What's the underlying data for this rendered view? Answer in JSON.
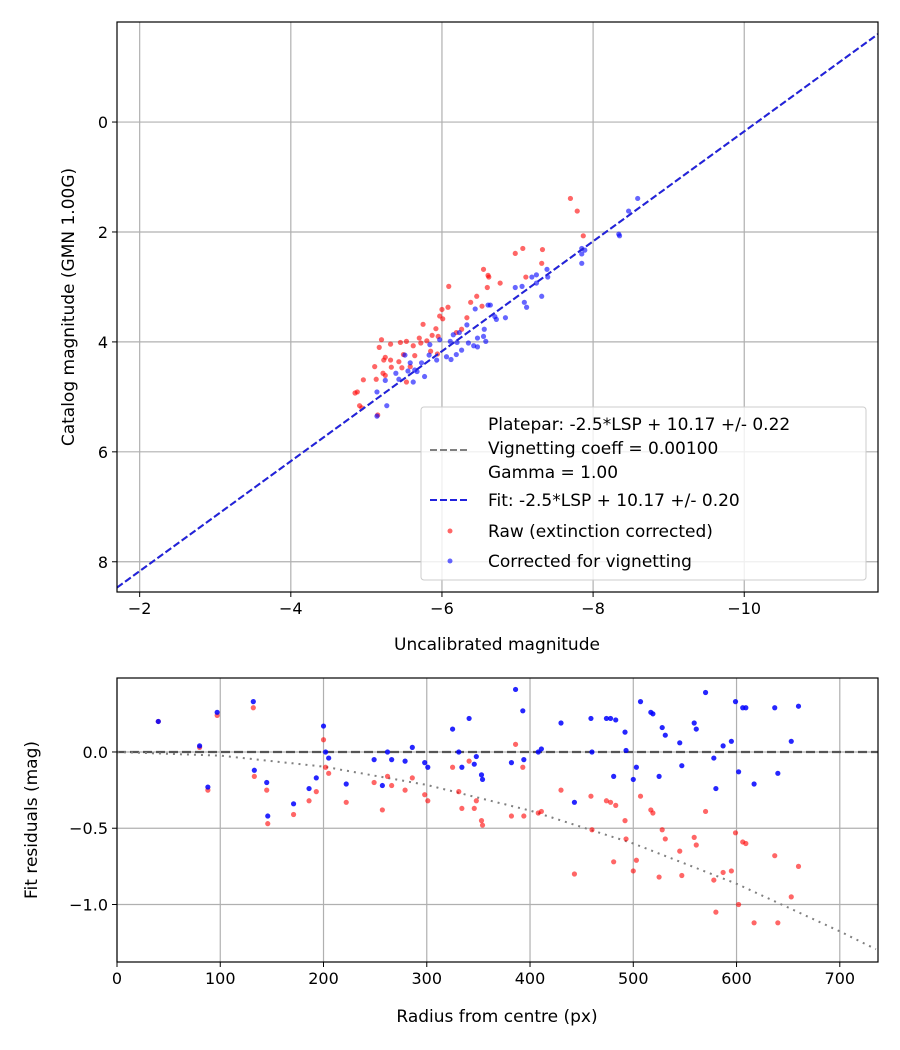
{
  "chart_data": [
    {
      "type": "scatter",
      "xlabel": "Uncalibrated magnitude",
      "ylabel": "Catalog magnitude (GMN 1.00G)",
      "xlim": [
        -1.7,
        -11.77
      ],
      "ylim": [
        8.55,
        -1.82
      ],
      "x_inverted": true,
      "y_inverted": true,
      "grid": true,
      "xticks": [
        -2,
        -4,
        -6,
        -8,
        -10
      ],
      "xtick_labels": [
        "−2",
        "−4",
        "−6",
        "−8",
        "−10"
      ],
      "yticks": [
        0,
        2,
        4,
        6,
        8
      ],
      "ytick_labels": [
        "0",
        "2",
        "4",
        "6",
        "8"
      ],
      "legend_position": "bottom-right",
      "lines": [
        {
          "name": "Platepar: -2.5*LSP + 10.17 +/- 0.22",
          "extra_lines": [
            "Vignetting coeff = 0.00100",
            "Gamma = 1.00"
          ],
          "slope": 1,
          "intercept": 10.17,
          "color": "#808080",
          "style": "dashed"
        },
        {
          "name": "Fit: -2.5*LSP + 10.17 +/- 0.20",
          "slope": 1,
          "intercept": 10.17,
          "color": "#2222dd",
          "style": "dashed"
        }
      ],
      "series": [
        {
          "name": "Raw (extinction corrected)",
          "color": "#ff0000",
          "points": [
            [
              -7.7,
              1.39
            ],
            [
              -7.79,
              1.62
            ],
            [
              -7.87,
              2.07
            ],
            [
              -6.97,
              2.39
            ],
            [
              -7.07,
              2.3
            ],
            [
              -7.33,
              2.32
            ],
            [
              -7.32,
              2.57
            ],
            [
              -6.55,
              2.68
            ],
            [
              -6.61,
              2.79
            ],
            [
              -6.62,
              2.82
            ],
            [
              -6.6,
              3.01
            ],
            [
              -6.77,
              2.93
            ],
            [
              -6.09,
              2.99
            ],
            [
              -6.46,
              3.17
            ],
            [
              -6.38,
              3.28
            ],
            [
              -6.08,
              3.37
            ],
            [
              -6.0,
              3.41
            ],
            [
              -5.97,
              3.53
            ],
            [
              -6.01,
              3.58
            ],
            [
              -6.33,
              3.56
            ],
            [
              -5.75,
              3.68
            ],
            [
              -5.92,
              3.76
            ],
            [
              -5.87,
              3.88
            ],
            [
              -5.95,
              3.9
            ],
            [
              -5.7,
              3.93
            ],
            [
              -5.53,
              3.99
            ],
            [
              -5.45,
              4.01
            ],
            [
              -5.32,
              4.04
            ],
            [
              -5.2,
              3.96
            ],
            [
              -5.17,
              4.1
            ],
            [
              -5.62,
              4.07
            ],
            [
              -5.8,
              3.98
            ],
            [
              -5.72,
              4.02
            ],
            [
              -6.19,
              3.83
            ],
            [
              -6.26,
              3.77
            ],
            [
              -5.25,
              4.28
            ],
            [
              -5.49,
              4.23
            ],
            [
              -5.64,
              4.25
            ],
            [
              -5.85,
              4.17
            ],
            [
              -5.94,
              4.22
            ],
            [
              -5.23,
              4.33
            ],
            [
              -5.32,
              4.33
            ],
            [
              -5.43,
              4.36
            ],
            [
              -5.11,
              4.45
            ],
            [
              -5.33,
              4.46
            ],
            [
              -5.47,
              4.47
            ],
            [
              -5.58,
              4.45
            ],
            [
              -5.22,
              4.57
            ],
            [
              -5.25,
              4.61
            ],
            [
              -5.13,
              4.68
            ],
            [
              -4.96,
              4.69
            ],
            [
              -5.53,
              4.73
            ],
            [
              -4.88,
              4.91
            ],
            [
              -4.91,
              5.16
            ],
            [
              -7.11,
              2.82
            ],
            [
              -6.53,
              3.35
            ],
            [
              -4.94,
              5.2
            ],
            [
              -5.15,
              5.33
            ],
            [
              -4.85,
              4.93
            ]
          ]
        },
        {
          "name": "Corrected for vignetting",
          "color": "#0000ff",
          "points": [
            [
              -8.59,
              1.39
            ],
            [
              -8.47,
              1.62
            ],
            [
              -8.35,
              2.07
            ],
            [
              -7.85,
              2.3
            ],
            [
              -7.89,
              2.33
            ],
            [
              -7.85,
              2.4
            ],
            [
              -7.85,
              2.57
            ],
            [
              -7.39,
              2.68
            ],
            [
              -7.4,
              2.82
            ],
            [
              -7.19,
              2.82
            ],
            [
              -7.25,
              2.78
            ],
            [
              -7.25,
              2.93
            ],
            [
              -6.97,
              3.01
            ],
            [
              -7.06,
              2.99
            ],
            [
              -7.32,
              3.17
            ],
            [
              -7.09,
              3.28
            ],
            [
              -7.12,
              3.37
            ],
            [
              -6.84,
              3.56
            ],
            [
              -6.72,
              3.59
            ],
            [
              -6.7,
              3.54
            ],
            [
              -6.61,
              3.33
            ],
            [
              -6.64,
              3.33
            ],
            [
              -6.44,
              3.4
            ],
            [
              -6.33,
              3.69
            ],
            [
              -6.56,
              3.77
            ],
            [
              -6.23,
              3.83
            ],
            [
              -6.15,
              3.87
            ],
            [
              -6.55,
              3.9
            ],
            [
              -6.58,
              3.99
            ],
            [
              -6.47,
              3.93
            ],
            [
              -6.42,
              4.07
            ],
            [
              -6.35,
              4.02
            ],
            [
              -6.47,
              4.09
            ],
            [
              -6.2,
              4.01
            ],
            [
              -6.11,
              3.99
            ],
            [
              -6.26,
              4.15
            ],
            [
              -6.19,
              4.23
            ],
            [
              -6.06,
              4.27
            ],
            [
              -6.12,
              4.32
            ],
            [
              -5.93,
              4.33
            ],
            [
              -5.83,
              4.24
            ],
            [
              -5.73,
              4.38
            ],
            [
              -5.58,
              4.38
            ],
            [
              -5.64,
              4.51
            ],
            [
              -5.67,
              4.54
            ],
            [
              -5.51,
              4.24
            ],
            [
              -5.39,
              4.57
            ],
            [
              -5.55,
              4.53
            ],
            [
              -5.77,
              4.63
            ],
            [
              -5.62,
              4.73
            ],
            [
              -5.43,
              4.68
            ],
            [
              -5.25,
              4.7
            ],
            [
              -5.14,
              4.91
            ],
            [
              -5.27,
              5.16
            ],
            [
              -5.14,
              5.35
            ],
            [
              -5.97,
              3.96
            ],
            [
              -5.84,
              4.05
            ],
            [
              -8.34,
              2.04
            ]
          ]
        }
      ]
    },
    {
      "type": "scatter",
      "xlabel": "Radius from centre (px)",
      "ylabel": "Fit residuals (mag)",
      "xlim": [
        0,
        737
      ],
      "ylim": [
        -1.377,
        0.485
      ],
      "grid": true,
      "xticks": [
        0,
        100,
        200,
        300,
        400,
        500,
        600,
        700
      ],
      "xtick_labels": [
        "0",
        "100",
        "200",
        "300",
        "400",
        "500",
        "600",
        "700"
      ],
      "yticks": [
        0.0,
        -0.5,
        -1.0
      ],
      "ytick_labels": [
        "0.0",
        "−0.5",
        "−1.0"
      ],
      "zero_line": {
        "y": 0,
        "color": "#555555",
        "style": "dashed"
      },
      "vignetting_curve": {
        "color": "#808080",
        "style": "dotted",
        "points": [
          [
            0,
            0
          ],
          [
            100,
            -0.024
          ],
          [
            200,
            -0.096
          ],
          [
            300,
            -0.216
          ],
          [
            400,
            -0.384
          ],
          [
            500,
            -0.6
          ],
          [
            600,
            -0.864
          ],
          [
            700,
            -1.176
          ],
          [
            737,
            -1.3
          ]
        ]
      },
      "series_columns": [
        "radius",
        "corrected_residual",
        "raw_residual"
      ],
      "series": [
        {
          "name": "Raw (extinction corrected)",
          "color": "#ff0000",
          "value_column": "raw_residual"
        },
        {
          "name": "Corrected for vignetting",
          "color": "#0000ff",
          "value_column": "corrected_residual"
        }
      ],
      "points": [
        [
          40,
          0.2,
          0.2
        ],
        [
          80,
          0.04,
          0.03
        ],
        [
          88,
          -0.23,
          -0.25
        ],
        [
          97,
          0.26,
          0.24
        ],
        [
          132,
          0.33,
          0.29
        ],
        [
          133,
          -0.12,
          -0.16
        ],
        [
          145,
          -0.2,
          -0.25
        ],
        [
          146,
          -0.42,
          -0.47
        ],
        [
          171,
          -0.34,
          -0.41
        ],
        [
          186,
          -0.24,
          -0.32
        ],
        [
          193,
          -0.17,
          -0.26
        ],
        [
          200,
          0.17,
          0.08
        ],
        [
          202,
          0.0,
          -0.1
        ],
        [
          205,
          -0.04,
          -0.14
        ],
        [
          222,
          -0.21,
          -0.33
        ],
        [
          249,
          -0.05,
          -0.2
        ],
        [
          257,
          -0.22,
          -0.38
        ],
        [
          262,
          0.0,
          -0.16
        ],
        [
          266,
          -0.05,
          -0.22
        ],
        [
          279,
          -0.06,
          -0.25
        ],
        [
          286,
          0.03,
          -0.17
        ],
        [
          298,
          -0.07,
          -0.28
        ],
        [
          301,
          -0.1,
          -0.32
        ],
        [
          325,
          0.15,
          -0.1
        ],
        [
          331,
          0.0,
          -0.26
        ],
        [
          334,
          -0.1,
          -0.37
        ],
        [
          341,
          0.22,
          -0.06
        ],
        [
          346,
          -0.08,
          -0.37
        ],
        [
          348,
          -0.03,
          -0.32
        ],
        [
          353,
          -0.15,
          -0.45
        ],
        [
          354,
          -0.18,
          -0.48
        ],
        [
          382,
          -0.07,
          -0.42
        ],
        [
          386,
          0.41,
          0.05
        ],
        [
          393,
          0.27,
          -0.1
        ],
        [
          394,
          -0.05,
          -0.42
        ],
        [
          408,
          0.0,
          -0.4
        ],
        [
          411,
          0.02,
          -0.39
        ],
        [
          430,
          0.19,
          -0.25
        ],
        [
          443,
          -0.33,
          -0.8
        ],
        [
          459,
          0.22,
          -0.29
        ],
        [
          460,
          0.0,
          -0.51
        ],
        [
          474,
          0.22,
          -0.32
        ],
        [
          478,
          0.22,
          -0.33
        ],
        [
          481,
          -0.16,
          -0.72
        ],
        [
          483,
          0.21,
          -0.35
        ],
        [
          492,
          0.13,
          -0.45
        ],
        [
          493,
          0.01,
          -0.57
        ],
        [
          500,
          -0.18,
          -0.78
        ],
        [
          503,
          -0.1,
          -0.71
        ],
        [
          507,
          0.33,
          -0.29
        ],
        [
          517,
          0.26,
          -0.38
        ],
        [
          519,
          0.25,
          -0.4
        ],
        [
          525,
          -0.16,
          -0.82
        ],
        [
          528,
          0.16,
          -0.51
        ],
        [
          531,
          0.11,
          -0.57
        ],
        [
          545,
          0.06,
          -0.65
        ],
        [
          547,
          -0.09,
          -0.81
        ],
        [
          559,
          0.19,
          -0.56
        ],
        [
          561,
          0.15,
          -0.61
        ],
        [
          570,
          0.39,
          -0.39
        ],
        [
          578,
          -0.04,
          -0.84
        ],
        [
          580,
          -0.24,
          -1.05
        ],
        [
          587,
          0.04,
          -0.79
        ],
        [
          595,
          0.07,
          -0.78
        ],
        [
          599,
          0.33,
          -0.53
        ],
        [
          602,
          -0.13,
          -1.0
        ],
        [
          606,
          0.29,
          -0.59
        ],
        [
          609,
          0.29,
          -0.6
        ],
        [
          617,
          -0.21,
          -1.12
        ],
        [
          637,
          0.29,
          -0.68
        ],
        [
          640,
          -0.14,
          -1.12
        ],
        [
          653,
          0.07,
          -0.95
        ],
        [
          660,
          0.3,
          -0.75
        ]
      ]
    }
  ]
}
